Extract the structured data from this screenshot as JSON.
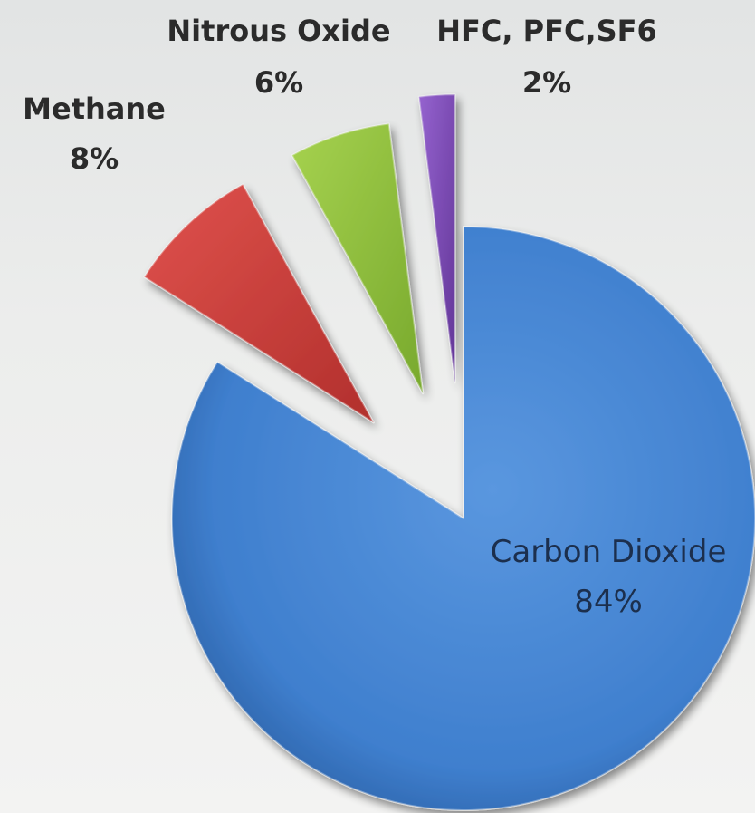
{
  "chart_data": {
    "type": "pie",
    "title": "",
    "exploded": true,
    "style": "3d-beveled",
    "slices": [
      {
        "name": "Carbon Dioxide",
        "value": 84,
        "label": "84%",
        "color": "#3f7fce"
      },
      {
        "name": "Methane",
        "value": 8,
        "label": "8%",
        "color": "#c63c38"
      },
      {
        "name": "Nitrous Oxide",
        "value": 6,
        "label": "6%",
        "color": "#8fc13d"
      },
      {
        "name": "HFC, PFC,SF6",
        "value": 2,
        "label": "2%",
        "color": "#7a47b2"
      }
    ]
  }
}
